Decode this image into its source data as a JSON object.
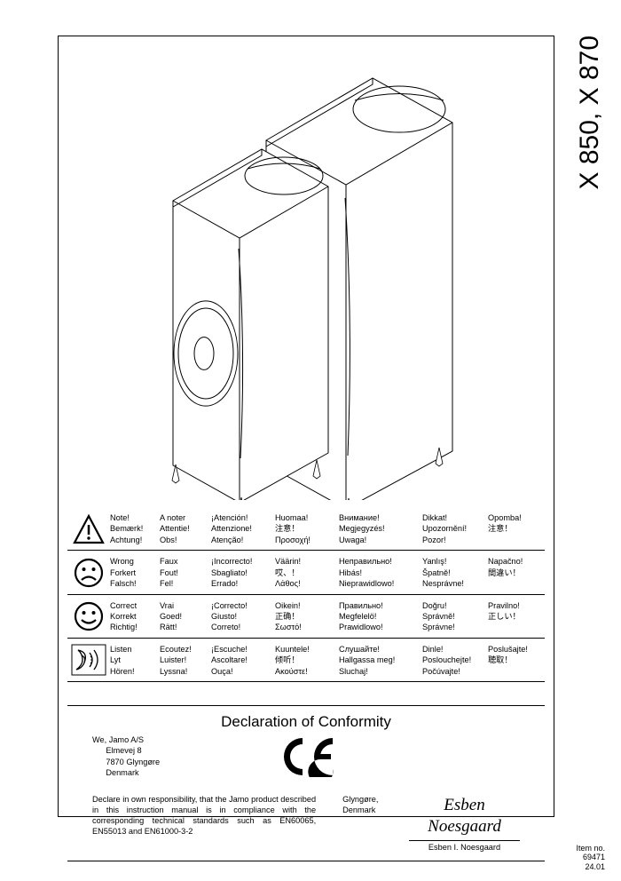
{
  "model_title": "X 850, X 870",
  "item_no_label": "Item no.",
  "item_no_value": "69471",
  "item_no_date": "24.01",
  "legend_rows": [
    {
      "cells": [
        "Note!\nBemærk!\nAchtung!",
        "A noter\nAttentie!\nObs!",
        "¡Atención!\nAttenzione!\nAtenção!",
        "Huomaa!\n注意！\nΠροσοχή!",
        "Внимание!\nMegjegyzés!\nUwaga!",
        "Dikkat!\nUpozornění!\nPozor!",
        "Opomba!\n注意！\n"
      ]
    },
    {
      "cells": [
        "Wrong\nForkert\nFalsch!",
        "Faux\nFout!\nFel!",
        "¡Incorrecto!\nSbagliato!\nErrado!",
        "Väärin!\n哎、！\nΛάθος!",
        "Неправильно!\nHibás!\nNieprawidlowo!",
        "Yanlış!\nŠpatně!\nNesprávne!",
        "Napačno!\n間違い！\n"
      ]
    },
    {
      "cells": [
        "Correct\nKorrekt\nRichtig!",
        "Vrai\nGoed!\nRätt!",
        "¡Correcto!\nGiusto!\nCorreto!",
        "Oikein!\n正确！\nΣωστό!",
        "Правильно!\nMegfelelö!\nPrawidlowo!",
        "Doğru!\nSprávně!\nSprávne!",
        "Pravilno!\n正しい！\n"
      ]
    },
    {
      "cells": [
        "Listen\nLyt\nHören!",
        "Ecoutez!\nLuister!\nLyssna!",
        "¡Escuche!\nAscoltare!\nOuça!",
        "Kuuntele!\n倾听！\nΑκούστε!",
        "Слушайте!\nHallgassa meg!\nSluchaj!",
        "Dinle!\nPoslouchejte!\nPočúvajte!",
        "Poslušajte!\n聴取！\n"
      ]
    }
  ],
  "declaration": {
    "title": "Declaration of Conformity",
    "company": "We,  Jamo A/S",
    "addr1": "Elmevej 8",
    "addr2": "7870 Glyngøre",
    "addr3": "Denmark",
    "text": "Declare in own responsibility, that the Jamo product described in this instruction manual is in compliance with the corresponding technical standards such as EN60065, EN55013 and EN61000-3-2",
    "place": "Glyngøre, Denmark",
    "signatory": "Esben I. Noesgaard",
    "signature_script": "Esben Noesgaard"
  }
}
